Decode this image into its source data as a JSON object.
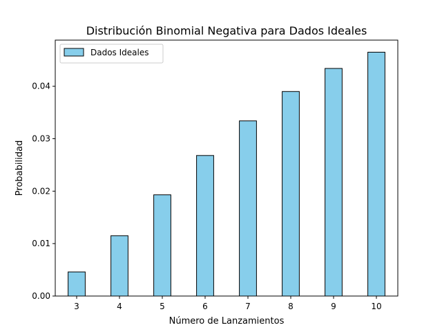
{
  "chart_data": {
    "type": "bar",
    "title": "Distribución Binomial Negativa para Dados Ideales",
    "xlabel": "Número de Lanzamientos",
    "ylabel": "Probabilidad",
    "categories": [
      "3",
      "4",
      "5",
      "6",
      "7",
      "8",
      "9",
      "10"
    ],
    "series": [
      {
        "name": "Dados Ideales",
        "values": [
          0.0046,
          0.0115,
          0.0193,
          0.0268,
          0.0334,
          0.039,
          0.0434,
          0.0465
        ]
      }
    ],
    "yticks": [
      "0.00",
      "0.01",
      "0.02",
      "0.03",
      "0.04"
    ],
    "ylim": [
      0,
      0.0488
    ],
    "grid": false,
    "legend_position": "top-left",
    "colors": {
      "bar_fill": "#87ceeb",
      "bar_edge": "#000000"
    }
  }
}
